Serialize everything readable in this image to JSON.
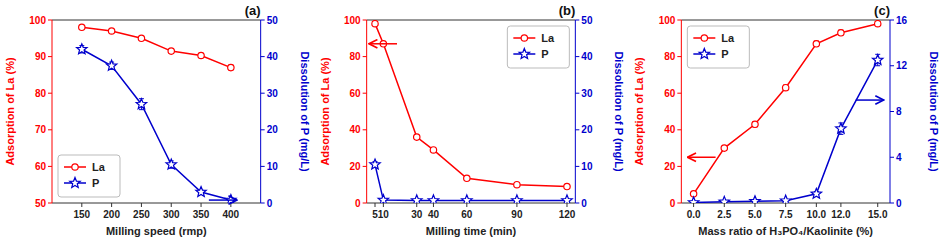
{
  "chart_data": [
    {
      "type": "line",
      "title": "(a)",
      "x_label": "Milling speed (rmp)",
      "y_label": "Adsorption of La (%)",
      "y2_label": "Dissolution of P (mg/L)",
      "x": [
        150,
        200,
        250,
        300,
        350,
        400
      ],
      "xlim": [
        100,
        450
      ],
      "xticks": [
        150,
        200,
        250,
        300,
        350,
        400
      ],
      "ylim": [
        50,
        100
      ],
      "yticks": [
        50,
        60,
        70,
        80,
        90,
        100
      ],
      "y2lim": [
        0,
        50
      ],
      "y2ticks": [
        0,
        10,
        20,
        30,
        40,
        50
      ],
      "grid": false,
      "legend": "lower left",
      "series": [
        {
          "name": "La",
          "color": "#ff0000",
          "marker": "circle",
          "line_style": "solid",
          "values": [
            98.0,
            97.0,
            95.0,
            91.5,
            90.3,
            87.0
          ],
          "errors": [
            0.5,
            0.5,
            0.5,
            0.6,
            0.6,
            0.7
          ]
        },
        {
          "name": "P",
          "color": "#0000cd",
          "marker": "star",
          "line_style": "solid",
          "axis": "y2",
          "values": [
            42.0,
            37.5,
            27.0,
            10.5,
            3.0,
            0.8
          ],
          "errors": [
            1.0,
            1.0,
            1.5,
            1.0,
            0.5,
            0.3
          ]
        }
      ],
      "annotations": [
        {
          "x": 400,
          "y": 0.8,
          "axis": "y2",
          "direction": "right"
        }
      ]
    },
    {
      "type": "line",
      "title": "(b)",
      "x_label": "Milling time (min)",
      "y_label": "Adsorption of La (%)",
      "y2_label": "Dissolution of P (mg/L)",
      "x": [
        5,
        10,
        30,
        40,
        60,
        90,
        120
      ],
      "xlim": [
        0,
        125
      ],
      "xticks": [
        5,
        10,
        30,
        40,
        60,
        90,
        120
      ],
      "ylim": [
        0,
        100
      ],
      "yticks": [
        0,
        20,
        40,
        60,
        80,
        100
      ],
      "y2lim": [
        0,
        50
      ],
      "y2ticks": [
        0,
        10,
        20,
        30,
        40,
        50
      ],
      "grid": false,
      "legend": "upper right",
      "series": [
        {
          "name": "La",
          "color": "#ff0000",
          "marker": "circle",
          "line_style": "solid",
          "values": [
            98.0,
            87.0,
            36.0,
            29.0,
            13.5,
            10.0,
            9.0
          ],
          "errors": [
            0.5,
            1.0,
            1.0,
            1.0,
            0.8,
            0.5,
            0.5
          ]
        },
        {
          "name": "P",
          "color": "#0000cd",
          "marker": "star",
          "line_style": "solid",
          "axis": "y2",
          "values": [
            10.5,
            0.8,
            0.7,
            0.7,
            0.7,
            0.7,
            0.7
          ],
          "errors": [
            0.8,
            0.2,
            0.2,
            0.2,
            0.2,
            0.2,
            0.2
          ]
        }
      ],
      "annotations": [
        {
          "x": 5,
          "y": 87.0,
          "axis": "y",
          "direction": "left"
        }
      ]
    },
    {
      "type": "line",
      "title": "(c)",
      "x_label": "Mass ratio of H₃PO₄/Kaolinite (%)",
      "y_label": "Adsorption of La (%)",
      "y2_label": "Dissolution of P (mg/L)",
      "x": [
        0,
        2.5,
        5,
        7.5,
        10,
        12,
        15
      ],
      "xlim": [
        -1,
        16
      ],
      "xticks": [
        {
          "value": 0,
          "label": "0.0"
        },
        {
          "value": 2.5,
          "label": "2.5"
        },
        {
          "value": 5,
          "label": "5.0"
        },
        {
          "value": 7.5,
          "label": "7.5"
        },
        {
          "value": 10,
          "label": "10.0"
        },
        {
          "value": 12,
          "label": "12.0"
        },
        {
          "value": 15,
          "label": "15.0"
        }
      ],
      "ylim": [
        0,
        100
      ],
      "yticks": [
        0,
        20,
        40,
        60,
        80,
        100
      ],
      "y2lim": [
        0,
        16
      ],
      "y2ticks": [
        0,
        4,
        8,
        12,
        16
      ],
      "grid": false,
      "legend": "upper left",
      "series": [
        {
          "name": "La",
          "color": "#ff0000",
          "marker": "circle",
          "line_style": "solid",
          "values": [
            5.0,
            30.0,
            43.0,
            63.0,
            87.0,
            93.0,
            98.0
          ],
          "errors": [
            0.5,
            1.0,
            1.5,
            1.5,
            1.5,
            1.5,
            0.5
          ]
        },
        {
          "name": "P",
          "color": "#0000cd",
          "marker": "star",
          "line_style": "solid",
          "axis": "y2",
          "values": [
            0.05,
            0.1,
            0.15,
            0.2,
            0.8,
            6.5,
            12.5
          ],
          "errors": [
            0.05,
            0.05,
            0.05,
            0.05,
            0.2,
            0.5,
            0.5
          ]
        }
      ],
      "annotations": [
        {
          "x": 15,
          "y": 9.0,
          "axis": "y2",
          "direction": "right"
        },
        {
          "x": 0,
          "y": 25.0,
          "axis": "y",
          "direction": "left"
        }
      ]
    }
  ]
}
